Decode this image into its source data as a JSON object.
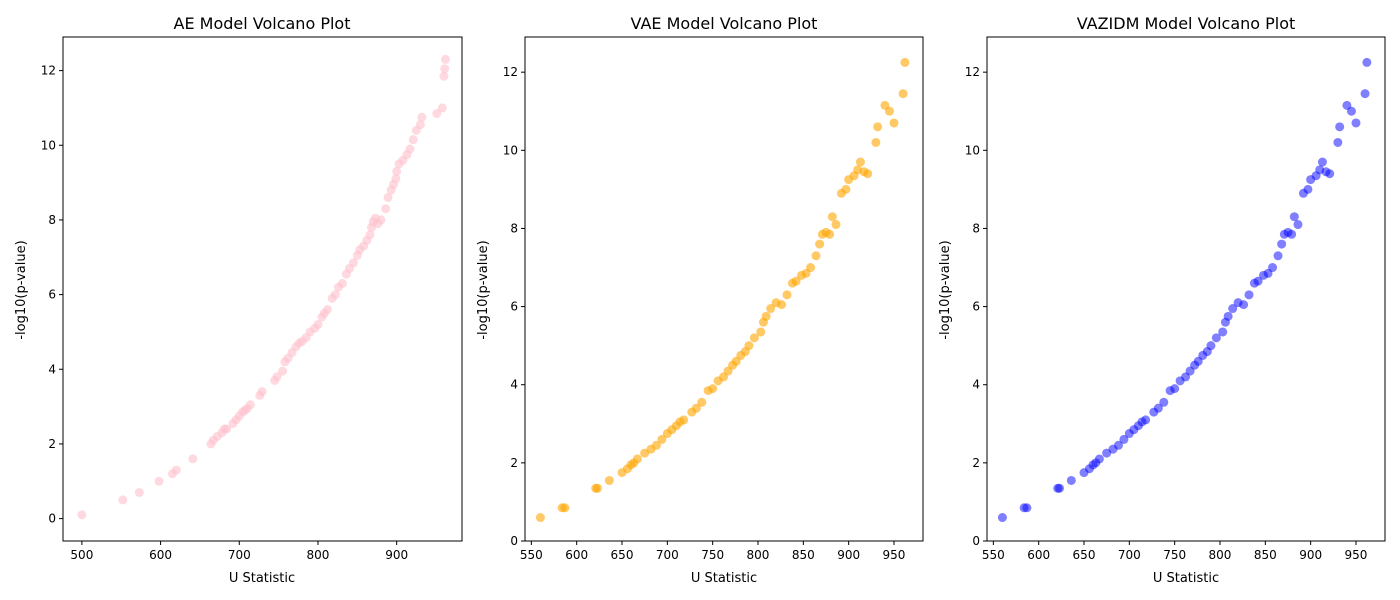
{
  "chart_data": [
    {
      "type": "scatter",
      "title": "AE Model Volcano Plot",
      "xlabel": "U Statistic",
      "ylabel": "-log10(p-value)",
      "color": "#ffc0cb",
      "alpha": 0.6,
      "xlim": [
        476,
        983
      ],
      "ylim": [
        -0.6,
        12.9
      ],
      "xticks": [
        500,
        600,
        700,
        800,
        900
      ],
      "yticks": [
        0,
        2,
        4,
        6,
        8,
        10,
        12
      ],
      "x": [
        500,
        552,
        573,
        598,
        615,
        620,
        641,
        664,
        667,
        672,
        678,
        681,
        684,
        692,
        696,
        700,
        704,
        707,
        710,
        714,
        726,
        729,
        745,
        748,
        755,
        758,
        762,
        767,
        772,
        776,
        780,
        785,
        790,
        796,
        800,
        805,
        808,
        812,
        818,
        822,
        826,
        831,
        836,
        840,
        845,
        850,
        853,
        858,
        862,
        866,
        868,
        870,
        873,
        876,
        880,
        886,
        889,
        893,
        896,
        899,
        900,
        903,
        908,
        913,
        917,
        921,
        925,
        930,
        932,
        951,
        958,
        960,
        961,
        962
      ],
      "y": [
        0.1,
        0.5,
        0.7,
        1.0,
        1.2,
        1.3,
        1.6,
        2.0,
        2.1,
        2.2,
        2.3,
        2.4,
        2.4,
        2.55,
        2.65,
        2.75,
        2.85,
        2.9,
        2.95,
        3.05,
        3.3,
        3.4,
        3.7,
        3.8,
        3.95,
        4.2,
        4.3,
        4.45,
        4.6,
        4.7,
        4.75,
        4.85,
        5.0,
        5.1,
        5.2,
        5.4,
        5.5,
        5.6,
        5.9,
        6.0,
        6.2,
        6.3,
        6.55,
        6.7,
        6.85,
        7.05,
        7.2,
        7.3,
        7.45,
        7.6,
        7.8,
        7.95,
        8.05,
        7.9,
        8.0,
        8.3,
        8.6,
        8.8,
        8.95,
        9.1,
        9.3,
        9.5,
        9.6,
        9.75,
        9.9,
        10.15,
        10.4,
        10.55,
        10.75,
        10.85,
        11.0,
        11.85,
        12.05,
        12.3
      ]
    },
    {
      "type": "scatter",
      "title": "VAE Model Volcano Plot",
      "xlabel": "U Statistic",
      "ylabel": "-log10(p-value)",
      "color": "#ffa500",
      "alpha": 0.6,
      "xlim": [
        543,
        982
      ],
      "ylim": [
        0,
        12.9
      ],
      "xticks": [
        550,
        600,
        650,
        700,
        750,
        800,
        850,
        900,
        950
      ],
      "yticks": [
        0,
        2,
        4,
        6,
        8,
        10,
        12
      ],
      "x": [
        560,
        584,
        587,
        621,
        623,
        636,
        650,
        656,
        660,
        663,
        667,
        675,
        682,
        688,
        694,
        700,
        705,
        710,
        714,
        718,
        727,
        732,
        738,
        745,
        750,
        756,
        762,
        767,
        772,
        776,
        781,
        786,
        790,
        796,
        803,
        806,
        809,
        814,
        820,
        826,
        832,
        838,
        842,
        848,
        853,
        858,
        864,
        868,
        871,
        875,
        879,
        882,
        886,
        892,
        897,
        900,
        906,
        910,
        913,
        917,
        921,
        930,
        932,
        940,
        945,
        950,
        960,
        962
      ],
      "y": [
        0.6,
        0.85,
        0.85,
        1.35,
        1.35,
        1.55,
        1.75,
        1.85,
        1.95,
        2.0,
        2.1,
        2.25,
        2.35,
        2.45,
        2.6,
        2.75,
        2.85,
        2.95,
        3.05,
        3.1,
        3.3,
        3.4,
        3.55,
        3.85,
        3.9,
        4.1,
        4.2,
        4.35,
        4.5,
        4.6,
        4.75,
        4.85,
        5.0,
        5.2,
        5.35,
        5.6,
        5.75,
        5.95,
        6.1,
        6.05,
        6.3,
        6.6,
        6.65,
        6.8,
        6.85,
        7.0,
        7.3,
        7.6,
        7.85,
        7.9,
        7.85,
        8.3,
        8.1,
        8.9,
        9.0,
        9.25,
        9.35,
        9.5,
        9.7,
        9.45,
        9.4,
        10.2,
        10.6,
        11.15,
        11.0,
        10.7,
        11.45,
        12.25
      ]
    },
    {
      "type": "scatter",
      "title": "VAZIDM Model Volcano Plot",
      "xlabel": "U Statistic",
      "ylabel": "-log10(p-value)",
      "color": "#0000ff",
      "alpha": 0.5,
      "xlim": [
        543,
        982
      ],
      "ylim": [
        0,
        12.9
      ],
      "xticks": [
        550,
        600,
        650,
        700,
        750,
        800,
        850,
        900,
        950
      ],
      "yticks": [
        0,
        2,
        4,
        6,
        8,
        10,
        12
      ],
      "x": [
        560,
        584,
        587,
        621,
        623,
        636,
        650,
        656,
        660,
        663,
        667,
        675,
        682,
        688,
        694,
        700,
        705,
        710,
        714,
        718,
        727,
        732,
        738,
        745,
        750,
        756,
        762,
        767,
        772,
        776,
        781,
        786,
        790,
        796,
        803,
        806,
        809,
        814,
        820,
        826,
        832,
        838,
        842,
        848,
        853,
        858,
        864,
        868,
        871,
        875,
        879,
        882,
        886,
        892,
        897,
        900,
        906,
        910,
        913,
        917,
        921,
        930,
        932,
        940,
        945,
        950,
        960,
        962
      ],
      "y": [
        0.6,
        0.85,
        0.85,
        1.35,
        1.35,
        1.55,
        1.75,
        1.85,
        1.95,
        2.0,
        2.1,
        2.25,
        2.35,
        2.45,
        2.6,
        2.75,
        2.85,
        2.95,
        3.05,
        3.1,
        3.3,
        3.4,
        3.55,
        3.85,
        3.9,
        4.1,
        4.2,
        4.35,
        4.5,
        4.6,
        4.75,
        4.85,
        5.0,
        5.2,
        5.35,
        5.6,
        5.75,
        5.95,
        6.1,
        6.05,
        6.3,
        6.6,
        6.65,
        6.8,
        6.85,
        7.0,
        7.3,
        7.6,
        7.85,
        7.9,
        7.85,
        8.3,
        8.1,
        8.9,
        9.0,
        9.25,
        9.35,
        9.5,
        9.7,
        9.45,
        9.4,
        10.2,
        10.6,
        11.15,
        11.0,
        10.7,
        11.45,
        12.25
      ]
    }
  ]
}
